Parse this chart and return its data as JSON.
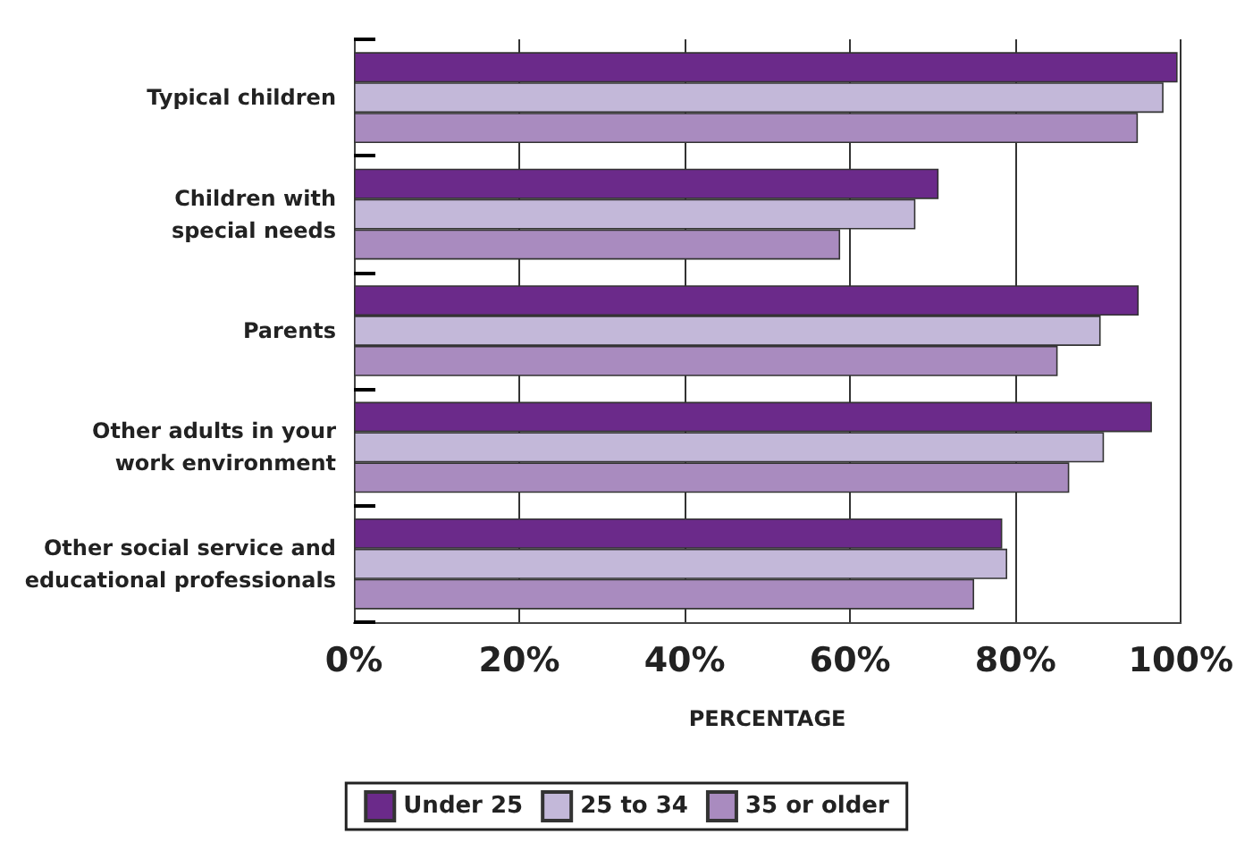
{
  "chart_data": {
    "type": "bar",
    "orientation": "horizontal",
    "xlabel": "PERCENTAGE",
    "categories": [
      "Typical children",
      "Children with\nspecial needs",
      "Parents",
      "Other adults in your\nwork environment",
      "Other social service and\neducational professionals"
    ],
    "series": [
      {
        "name": "Under 25",
        "color": "#6b2a8a",
        "values": [
          99.6,
          70.7,
          94.9,
          96.5,
          78.4
        ]
      },
      {
        "name": "25 to 34",
        "color": "#c3b8d9",
        "values": [
          97.9,
          67.9,
          90.3,
          90.7,
          79.0
        ]
      },
      {
        "name": "35 or older",
        "color": "#a98bbf",
        "values": [
          94.8,
          58.8,
          85.1,
          86.5,
          75.0
        ]
      }
    ],
    "xlim": [
      0,
      100
    ],
    "xticks": [
      {
        "value": 0,
        "label": "0%"
      },
      {
        "value": 20,
        "label": "20%"
      },
      {
        "value": 40,
        "label": "40%"
      },
      {
        "value": 60,
        "label": "60%"
      },
      {
        "value": 80,
        "label": "80%"
      },
      {
        "value": 100,
        "label": "100%"
      }
    ],
    "grid": "x",
    "legend": "bottom"
  }
}
